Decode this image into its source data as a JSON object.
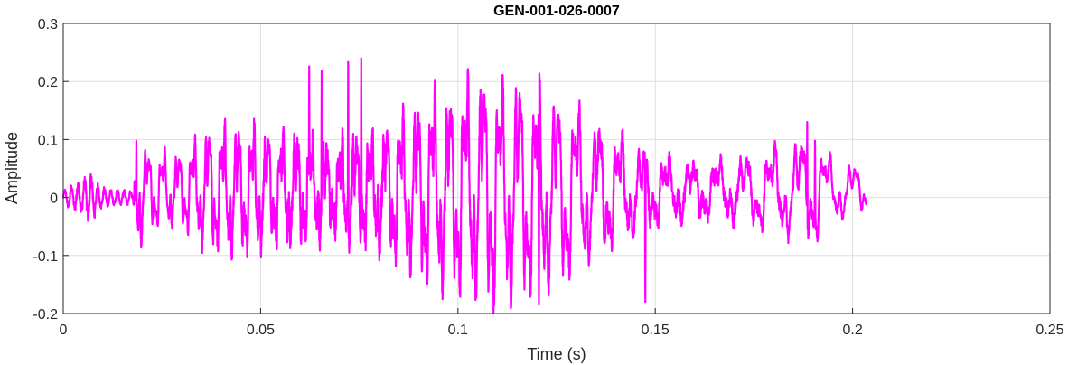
{
  "chart_data": {
    "type": "line",
    "title": "GEN-001-026-0007",
    "xlabel": "Time (s)",
    "ylabel": "Amplitude",
    "xlim": [
      0,
      0.25
    ],
    "ylim": [
      -0.2,
      0.3
    ],
    "xticks": [
      0,
      0.05,
      0.1,
      0.15,
      0.2,
      0.25
    ],
    "xtick_labels": [
      "0",
      "0.05",
      "0.1",
      "0.15",
      "0.2",
      "0.25"
    ],
    "yticks": [
      -0.2,
      -0.1,
      0,
      0.1,
      0.2,
      0.3
    ],
    "ytick_labels": [
      "-0.2",
      "-0.1",
      "0",
      "0.1",
      "0.2",
      "0.3"
    ],
    "grid": true,
    "series": [
      {
        "color": "#ff00ff",
        "signal": {
          "duration": 0.2035,
          "envelope": [
            [
              0,
              0.012
            ],
            [
              0.005,
              0.03
            ],
            [
              0.007,
              0.045
            ],
            [
              0.009,
              0.02
            ],
            [
              0.012,
              0.014
            ],
            [
              0.018,
              0.012
            ],
            [
              0.019,
              0.09
            ],
            [
              0.022,
              0.06
            ],
            [
              0.03,
              0.06
            ],
            [
              0.038,
              0.12
            ],
            [
              0.05,
              0.16
            ],
            [
              0.06,
              0.2
            ],
            [
              0.075,
              0.21
            ],
            [
              0.09,
              0.2
            ],
            [
              0.11,
              0.18
            ],
            [
              0.13,
              0.16
            ],
            [
              0.15,
              0.13
            ],
            [
              0.17,
              0.11
            ],
            [
              0.185,
              0.1
            ],
            [
              0.19,
              0.1
            ],
            [
              0.195,
              0.05
            ],
            [
              0.2035,
              0.035
            ]
          ],
          "peaks": [
            {
              "t": 0.0755,
              "v": 0.24
            },
            {
              "t": 0.0722,
              "v": 0.235
            },
            {
              "t": 0.0623,
              "v": 0.226
            },
            {
              "t": 0.0655,
              "v": 0.218
            },
            {
              "t": 0.109,
              "v": -0.198
            },
            {
              "t": 0.1205,
              "v": -0.185
            },
            {
              "t": 0.1475,
              "v": -0.18
            },
            {
              "t": 0.1885,
              "v": 0.13
            },
            {
              "t": 0.1905,
              "v": 0.098
            },
            {
              "t": 0.0185,
              "v": 0.098
            }
          ]
        }
      }
    ]
  }
}
